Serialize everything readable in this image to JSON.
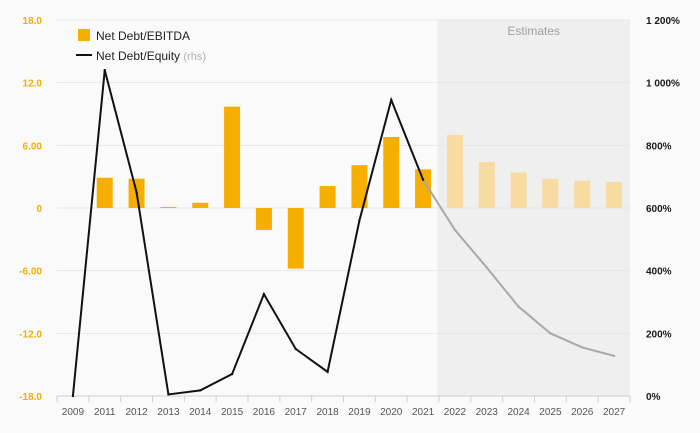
{
  "chart_data": {
    "type": "bar",
    "legend": {
      "bar_label": "Net Debt/EBITDA",
      "line_label": "Net Debt/Equity",
      "line_suffix": "(rhs)",
      "placement": "top-left"
    },
    "shaded_region": {
      "label": "Estimates",
      "from": "2022",
      "to": "2027"
    },
    "x": [
      "2009",
      "2011",
      "2012",
      "2013",
      "2014",
      "2015",
      "2016",
      "2017",
      "2018",
      "2019",
      "2020",
      "2021",
      "2022",
      "2023",
      "2024",
      "2025",
      "2026",
      "2027"
    ],
    "series": [
      {
        "name": "Net Debt/EBITDA",
        "kind": "bar",
        "axis": "left",
        "values": [
          null,
          2.9,
          2.8,
          0.1,
          0.5,
          9.7,
          -2.1,
          -5.8,
          2.1,
          4.1,
          6.8,
          3.7,
          7.0,
          4.4,
          3.4,
          2.8,
          2.6,
          2.5
        ],
        "color": "#f6ae00",
        "estimate_color": "#f8dba0"
      },
      {
        "name": "Net Debt/Equity",
        "kind": "line",
        "axis": "right",
        "values": [
          0,
          1040,
          650,
          5,
          18,
          70,
          325,
          150,
          77,
          560,
          945,
          690,
          530,
          410,
          285,
          200,
          155,
          128
        ],
        "color": "#111111",
        "estimate_color": "#a8a8a8"
      }
    ],
    "y_left": {
      "ylim": [
        -18,
        18
      ],
      "ticks": [
        -18,
        -12,
        -6,
        0,
        6,
        12,
        18
      ],
      "tick_labels": [
        "-18.0",
        "-12.0",
        "-6.00",
        "0",
        "6.00",
        "12.0",
        "18.0"
      ]
    },
    "y_right": {
      "ylim": [
        0,
        1200
      ],
      "ticks": [
        0,
        200,
        400,
        600,
        800,
        1000,
        1200
      ],
      "tick_labels": [
        "0%",
        "200%",
        "400%",
        "600%",
        "800%",
        "1 000%",
        "1 200%"
      ]
    },
    "grid": true,
    "title": "",
    "xlabel": "",
    "ylabel": ""
  }
}
